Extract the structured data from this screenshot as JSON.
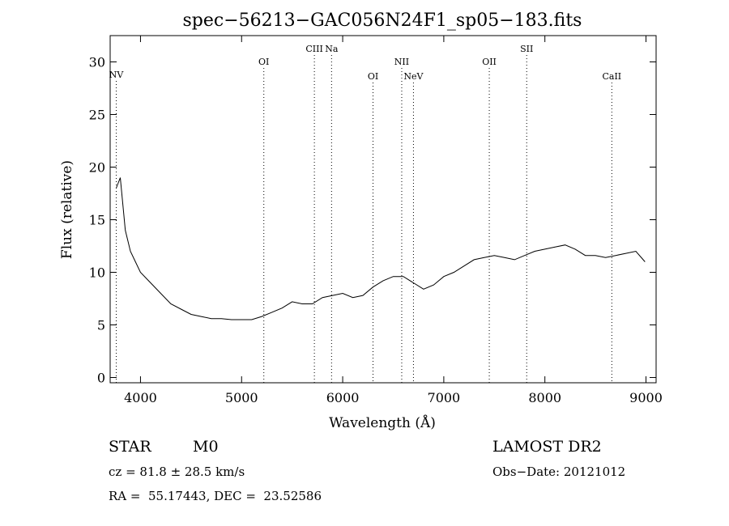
{
  "chart_data": {
    "type": "line",
    "title": "spec−56213−GAC056N24F1_sp05−183.fits",
    "xlabel": "Wavelength (Å)",
    "ylabel": "Flux (relative)",
    "xlim": [
      3700,
      9100
    ],
    "ylim": [
      -0.5,
      32.5
    ],
    "xticks": [
      4000,
      5000,
      6000,
      7000,
      8000,
      9000
    ],
    "yticks": [
      0,
      5,
      10,
      15,
      20,
      25,
      30
    ],
    "grid": false,
    "series": [
      {
        "x": [
          3760,
          3800,
          3850,
          3900,
          3950,
          4000,
          4100,
          4200,
          4300,
          4400,
          4500,
          4600,
          4700,
          4800,
          4900,
          5000,
          5100,
          5200,
          5300,
          5400,
          5500,
          5600,
          5700,
          5800,
          5900,
          6000,
          6100,
          6200,
          6300,
          6400,
          6500,
          6600,
          6700,
          6800,
          6900,
          7000,
          7100,
          7200,
          7300,
          7400,
          7500,
          7600,
          7700,
          7800,
          7900,
          8000,
          8100,
          8200,
          8300,
          8400,
          8500,
          8600,
          8700,
          8800,
          8900,
          8990
        ],
        "y": [
          18,
          19,
          14,
          12,
          11,
          10,
          9,
          8,
          7,
          6.5,
          6,
          5.8,
          5.6,
          5.6,
          5.5,
          5.5,
          5.5,
          5.8,
          6.2,
          6.6,
          7.2,
          7.0,
          7.0,
          7.6,
          7.8,
          8.0,
          7.6,
          7.8,
          8.6,
          9.2,
          9.6,
          9.6,
          9.0,
          8.4,
          8.8,
          9.6,
          10.0,
          10.6,
          11.2,
          11.4,
          11.6,
          11.4,
          11.2,
          11.6,
          12.0,
          12.2,
          12.4,
          12.6,
          12.2,
          11.6,
          11.6,
          11.4,
          11.6,
          11.8,
          12.0,
          11.0
        ]
      }
    ],
    "spectral_lines": [
      {
        "label": "NV",
        "x": 3760
      },
      {
        "label": "OI",
        "x": 5220
      },
      {
        "label": "CIII",
        "x": 5720
      },
      {
        "label": "Na",
        "x": 5890
      },
      {
        "label": "OI",
        "x": 6300
      },
      {
        "label": "NII",
        "x": 6584
      },
      {
        "label": "NeV",
        "x": 6700
      },
      {
        "label": "OII",
        "x": 7450
      },
      {
        "label": "SII",
        "x": 7820
      },
      {
        "label": "CaII",
        "x": 8662
      }
    ]
  },
  "info": {
    "object_class": "STAR",
    "subclass": "M0",
    "survey": "LAMOST DR2",
    "cz": "cz = 81.8 ± 28.5 km/s",
    "obs_date": "Obs−Date: 20121012",
    "coords": "RA =  55.17443, DEC =  23.52586"
  }
}
